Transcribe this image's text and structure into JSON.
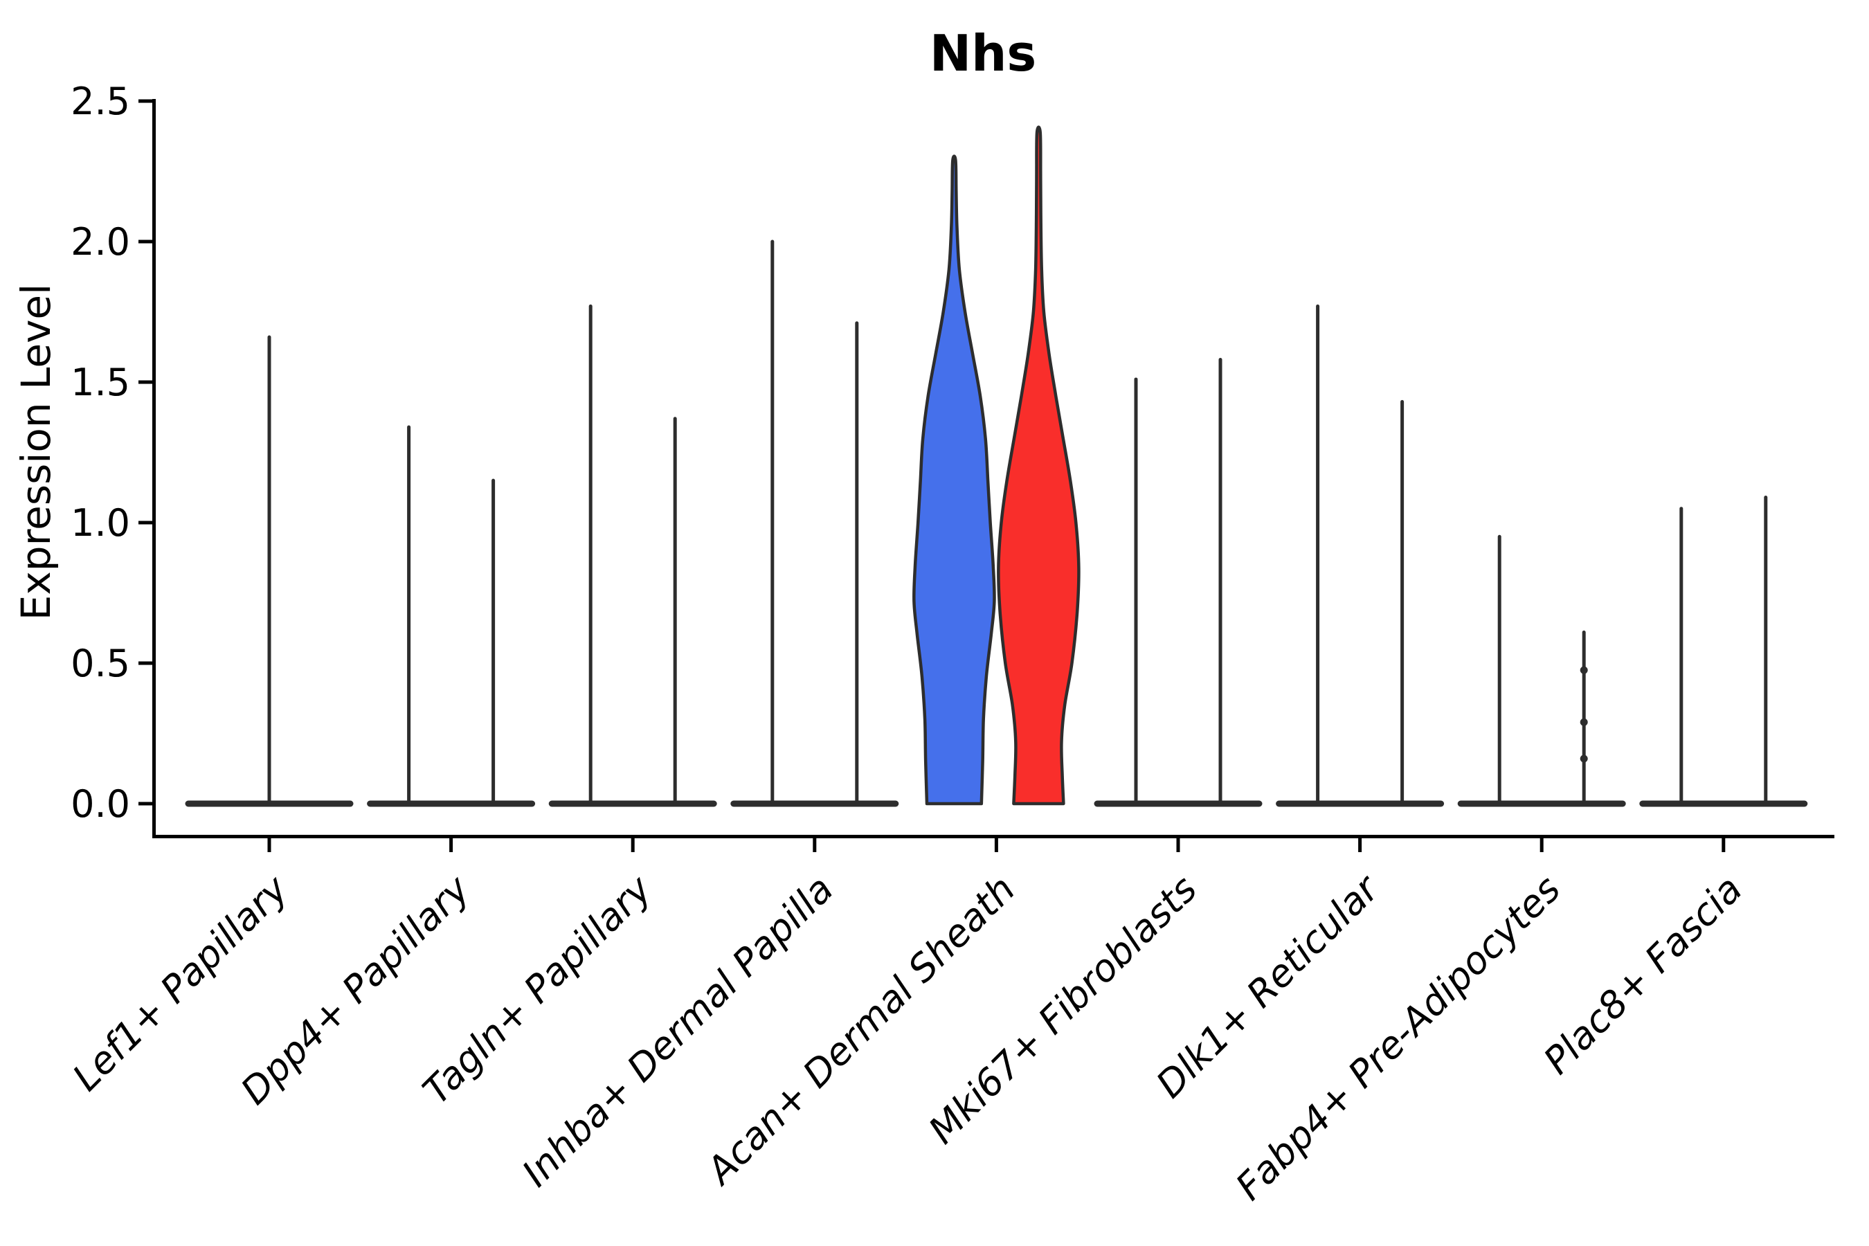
{
  "title": "Nhs",
  "axes": {
    "ylabel": "Expression Level",
    "ytick_labels": [
      "0.0",
      "0.5",
      "1.0",
      "1.5",
      "2.0",
      "2.5"
    ]
  },
  "chart_data": {
    "type": "violin",
    "title": "Nhs",
    "xlabel": "",
    "ylabel": "Expression Level",
    "ylim": [
      0,
      2.5
    ],
    "yticks": [
      0.0,
      0.5,
      1.0,
      1.5,
      2.0,
      2.5
    ],
    "grid": false,
    "legend_position": "none",
    "categories": [
      "Lef1+ Papillary",
      "Dpp4+ Papillary",
      "Tagln+ Papillary",
      "Inhba+ Dermal Papilla",
      "Acan+ Dermal Sheath",
      "Mki67+ Fibroblasts",
      "Dlk1+ Reticular",
      "Fabp4+ Pre-Adipocytes",
      "Plac8+ Fascia"
    ],
    "groups": [
      {
        "category": "Lef1+ Papillary",
        "violins": [
          {
            "pos": "center",
            "kind": "spike",
            "max": 1.66
          }
        ]
      },
      {
        "category": "Dpp4+ Papillary",
        "violins": [
          {
            "pos": "left",
            "kind": "spike",
            "max": 1.34
          },
          {
            "pos": "right",
            "kind": "spike",
            "max": 1.15
          }
        ]
      },
      {
        "category": "Tagln+ Papillary",
        "violins": [
          {
            "pos": "left",
            "kind": "spike",
            "max": 1.77
          },
          {
            "pos": "right",
            "kind": "spike",
            "max": 1.37
          }
        ]
      },
      {
        "category": "Inhba+ Dermal Papilla",
        "violins": [
          {
            "pos": "left",
            "kind": "spike",
            "max": 2.0
          },
          {
            "pos": "right",
            "kind": "spike",
            "max": 1.71
          }
        ]
      },
      {
        "category": "Acan+ Dermal Sheath",
        "violins": [
          {
            "pos": "left",
            "kind": "violin",
            "color": "#4570EB",
            "max": 2.29,
            "profile": [
              [
                0,
                0.68
              ],
              [
                0.15,
                0.71
              ],
              [
                0.3,
                0.73
              ],
              [
                0.45,
                0.8
              ],
              [
                0.6,
                0.92
              ],
              [
                0.72,
                1.0
              ],
              [
                0.85,
                0.97
              ],
              [
                1.0,
                0.9
              ],
              [
                1.15,
                0.84
              ],
              [
                1.3,
                0.78
              ],
              [
                1.45,
                0.65
              ],
              [
                1.6,
                0.46
              ],
              [
                1.75,
                0.27
              ],
              [
                1.9,
                0.13
              ],
              [
                2.05,
                0.07
              ],
              [
                2.18,
                0.05
              ],
              [
                2.29,
                0.035
              ]
            ]
          },
          {
            "pos": "right",
            "kind": "violin",
            "color": "#F92E2B",
            "max": 2.39,
            "profile": [
              [
                0,
                0.62
              ],
              [
                0.1,
                0.59
              ],
              [
                0.22,
                0.57
              ],
              [
                0.35,
                0.65
              ],
              [
                0.5,
                0.83
              ],
              [
                0.68,
                0.96
              ],
              [
                0.84,
                1.0
              ],
              [
                1.0,
                0.93
              ],
              [
                1.15,
                0.79
              ],
              [
                1.3,
                0.61
              ],
              [
                1.45,
                0.43
              ],
              [
                1.6,
                0.26
              ],
              [
                1.75,
                0.13
              ],
              [
                1.9,
                0.075
              ],
              [
                2.1,
                0.055
              ],
              [
                2.25,
                0.05
              ],
              [
                2.39,
                0.04
              ]
            ]
          }
        ]
      },
      {
        "category": "Mki67+ Fibroblasts",
        "violins": [
          {
            "pos": "left",
            "kind": "spike",
            "max": 1.51
          },
          {
            "pos": "right",
            "kind": "spike",
            "max": 1.58
          }
        ]
      },
      {
        "category": "Dlk1+ Reticular",
        "violins": [
          {
            "pos": "left",
            "kind": "spike",
            "max": 1.77
          },
          {
            "pos": "right",
            "kind": "spike",
            "max": 1.43
          }
        ]
      },
      {
        "category": "Fabp4+ Pre-Adipocytes",
        "violins": [
          {
            "pos": "left",
            "kind": "spike",
            "max": 0.95
          },
          {
            "pos": "right",
            "kind": "spike",
            "max": 0.61,
            "knots": [
              0.475,
              0.29,
              0.16
            ]
          }
        ]
      },
      {
        "category": "Plac8+ Fascia",
        "violins": [
          {
            "pos": "left",
            "kind": "spike",
            "max": 1.05
          },
          {
            "pos": "right",
            "kind": "spike",
            "max": 1.09
          }
        ]
      }
    ],
    "style": {
      "ink": "#2d2d2d",
      "axis_color": "#000000",
      "background": "#ffffff",
      "blue_fill": "#4570EB",
      "red_fill": "#F92E2B"
    }
  }
}
